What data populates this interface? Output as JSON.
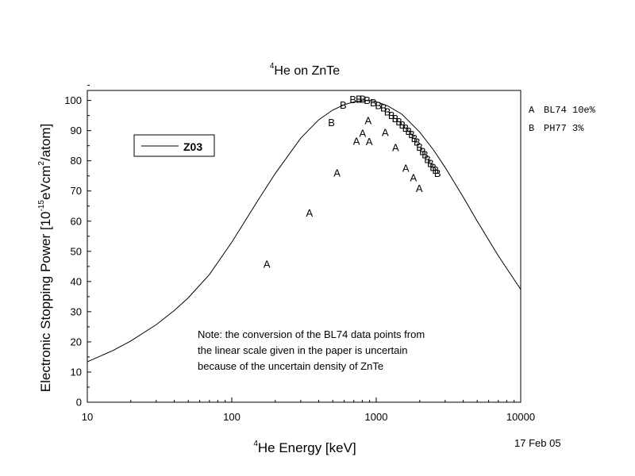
{
  "chart_data": {
    "type": "line",
    "title_sup": "4",
    "title_rest": "He on ZnTe",
    "xlabel_sup": "4",
    "xlabel_rest": "He Energy [keV]",
    "ylabel": {
      "prefix": "Electronic Stopping Power [10",
      "sup1": "-15",
      "mid": "eVcm",
      "sup2": "2",
      "suffix": "/atom]"
    },
    "x_scale": "log",
    "xlim": [
      10,
      10000
    ],
    "ylim": [
      0,
      105
    ],
    "x_ticks": [
      10,
      100,
      1000,
      10000
    ],
    "x_tick_labels": [
      "10",
      "100",
      "1000",
      "10000"
    ],
    "y_ticks": [
      0,
      10,
      20,
      30,
      40,
      50,
      60,
      70,
      80,
      90,
      100
    ],
    "y_tick_labels": [
      "0",
      "10",
      "20",
      "30",
      "40",
      "50",
      "60",
      "70",
      "80",
      "90",
      "100"
    ],
    "grid": false,
    "legend": {
      "placement": "upper-left",
      "entries": [
        {
          "name": "Z03",
          "style": "line"
        }
      ]
    },
    "curve": {
      "name": "Z03",
      "x": [
        10,
        15,
        20,
        30,
        40,
        50,
        70,
        100,
        150,
        200,
        300,
        400,
        500,
        600,
        700,
        800,
        900,
        1000,
        1200,
        1500,
        2000,
        2500,
        3000,
        4000,
        5000,
        7000,
        10000
      ],
      "y": [
        13.4,
        17.1,
        20.3,
        25.7,
        30.4,
        34.6,
        42.3,
        53.0,
        66.5,
        75.8,
        87.5,
        93.6,
        96.8,
        98.6,
        99.5,
        99.9,
        100.0,
        99.6,
        98.2,
        95.5,
        89.5,
        83.5,
        77.8,
        68.0,
        60.0,
        48.5,
        37.4
      ]
    },
    "series_A": {
      "marker": "A",
      "x": [
        175,
        345,
        535,
        730,
        805,
        895,
        880,
        1155,
        1360,
        1600,
        1810,
        1985
      ],
      "y": [
        45.9,
        62.8,
        76.1,
        86.6,
        89.3,
        86.5,
        93.4,
        89.5,
        84.5,
        77.7,
        74.5,
        71.0
      ]
    },
    "series_B": {
      "marker": "B",
      "x": [
        490,
        590,
        690,
        760,
        805,
        865,
        955,
        1035,
        1125,
        1195,
        1275,
        1355,
        1435,
        1515,
        1595,
        1675,
        1755,
        1835,
        1915,
        1995,
        2095,
        2175,
        2265,
        2375,
        2475,
        2575,
        2655
      ],
      "y": [
        92.8,
        98.6,
        100.4,
        100.6,
        100.6,
        100.2,
        99.4,
        98.4,
        97.6,
        96.4,
        95.2,
        94.1,
        93.1,
        92.0,
        91.0,
        89.9,
        88.9,
        87.6,
        86.4,
        84.6,
        83.2,
        82.1,
        80.6,
        79.2,
        78.0,
        77.0,
        76.0
      ]
    },
    "side_legend": [
      {
        "marker": "A",
        "text": "BL74 10e%"
      },
      {
        "marker": "B",
        "text": "PH77 3%"
      }
    ],
    "note_lines": [
      "Note: the conversion of the BL74 data points from",
      "the linear scale given in the paper is uncertain",
      "because of the uncertain density of ZnTe"
    ],
    "date": "17 Feb 05"
  }
}
